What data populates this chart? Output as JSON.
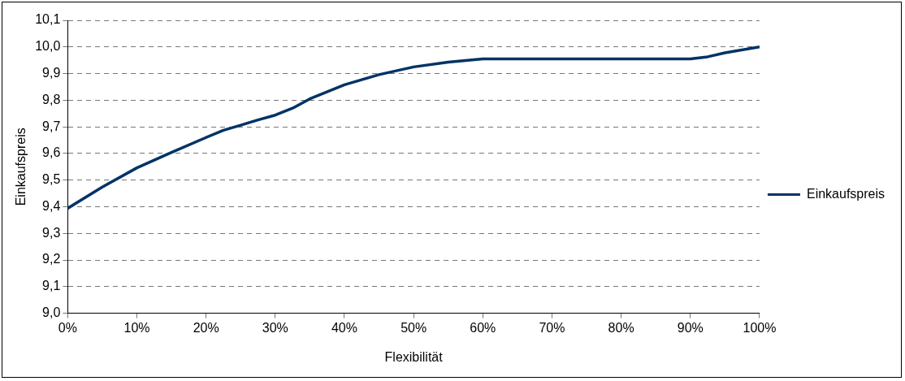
{
  "chart_data": {
    "type": "line",
    "xlabel": "Flexibilität",
    "ylabel": "Einkaufspreis",
    "x": [
      0,
      5,
      10,
      15,
      20,
      22.5,
      25,
      27.5,
      30,
      32.5,
      35,
      40,
      45,
      50,
      55,
      60,
      65,
      70,
      75,
      80,
      85,
      90,
      92.5,
      95,
      100
    ],
    "series": [
      {
        "name": "Einkaufspreis",
        "color": "#003366",
        "values": [
          9.394,
          9.474,
          9.546,
          9.604,
          9.66,
          9.687,
          9.706,
          9.726,
          9.744,
          9.77,
          9.805,
          9.858,
          9.896,
          9.925,
          9.943,
          9.955,
          9.955,
          9.955,
          9.955,
          9.955,
          9.955,
          9.955,
          9.963,
          9.978,
          10.0
        ]
      }
    ],
    "xlim": [
      0,
      100
    ],
    "xticks": [
      {
        "value": 0,
        "label": "0%"
      },
      {
        "value": 10,
        "label": "10%"
      },
      {
        "value": 20,
        "label": "20%"
      },
      {
        "value": 30,
        "label": "30%"
      },
      {
        "value": 40,
        "label": "40%"
      },
      {
        "value": 50,
        "label": "50%"
      },
      {
        "value": 60,
        "label": "60%"
      },
      {
        "value": 70,
        "label": "70%"
      },
      {
        "value": 80,
        "label": "80%"
      },
      {
        "value": 90,
        "label": "90%"
      },
      {
        "value": 100,
        "label": "100%"
      }
    ],
    "ylim": [
      9.0,
      10.1
    ],
    "yticks": [
      {
        "value": 9.0,
        "label": "9,0"
      },
      {
        "value": 9.1,
        "label": "9,1"
      },
      {
        "value": 9.2,
        "label": "9,2"
      },
      {
        "value": 9.3,
        "label": "9,3"
      },
      {
        "value": 9.4,
        "label": "9,4"
      },
      {
        "value": 9.5,
        "label": "9,5"
      },
      {
        "value": 9.6,
        "label": "9,6"
      },
      {
        "value": 9.7,
        "label": "9,7"
      },
      {
        "value": 9.8,
        "label": "9,8"
      },
      {
        "value": 9.9,
        "label": "9,9"
      },
      {
        "value": 10.0,
        "label": "10,0"
      },
      {
        "value": 10.1,
        "label": "10,1"
      }
    ],
    "grid": "y",
    "legend": "right",
    "marker": "none",
    "line_style": "solid"
  }
}
